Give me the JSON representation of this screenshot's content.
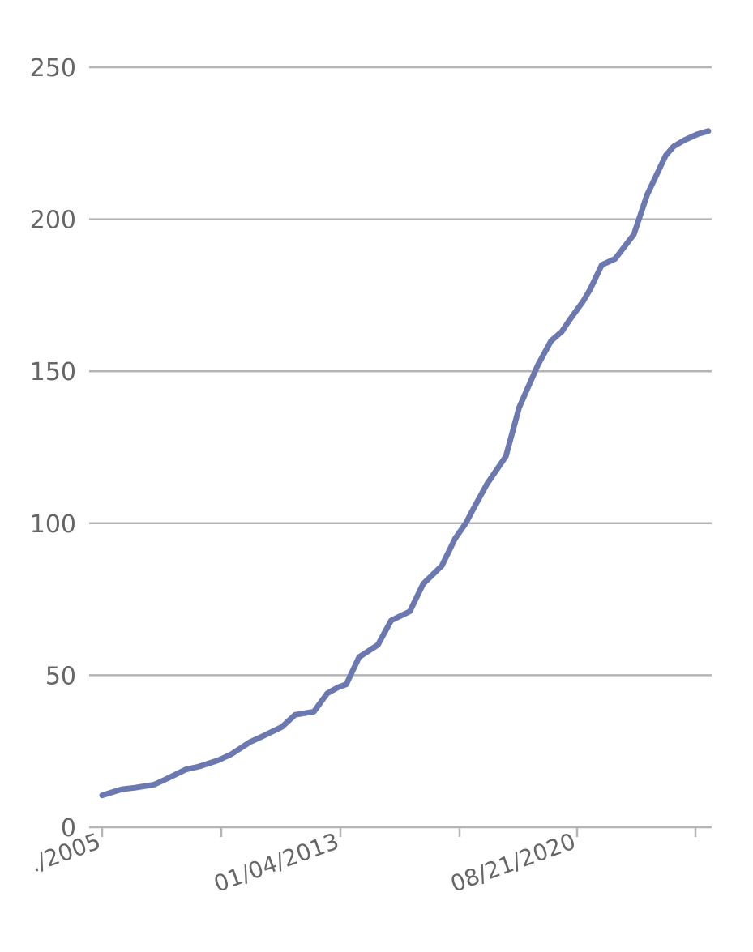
{
  "chart_data": {
    "type": "line",
    "title": "",
    "xlabel": "",
    "ylabel": "",
    "ylim": [
      0,
      250
    ],
    "y_ticks": [
      0,
      50,
      100,
      150,
      200,
      250
    ],
    "x_tick_labels": [
      "./2005",
      "01/04/2013",
      "08/21/2020"
    ],
    "grid": "horizontal",
    "legend": "none",
    "colors": {
      "series": "#6b79b0",
      "grid": "#b5b5b5",
      "axis": "#b5b5b5",
      "label": "#666666"
    },
    "series": [
      {
        "x": [
          "2005-05-20",
          "2006-01-01",
          "2006-06-01",
          "2007-01-01",
          "2007-06-01",
          "2008-01-01",
          "2008-06-01",
          "2009-01-01",
          "2009-06-01",
          "2010-01-01",
          "2010-06-01",
          "2011-01-01",
          "2011-06-01",
          "2012-01-01",
          "2012-06-01",
          "2012-10-01",
          "2013-01-04",
          "2013-06-01",
          "2014-01-01",
          "2014-06-01",
          "2015-01-01",
          "2015-06-01",
          "2016-01-01",
          "2016-06-01",
          "2016-10-01",
          "2017-01-01",
          "2017-06-01",
          "2018-01-01",
          "2018-06-01",
          "2019-01-01",
          "2019-06-01",
          "2019-10-01",
          "2020-01-01",
          "2020-06-01",
          "2020-08-21",
          "2021-01-01",
          "2021-06-01",
          "2022-01-01",
          "2022-06-01",
          "2023-01-01",
          "2023-04-01",
          "2023-08-01",
          "2024-01-01",
          "2024-05-01"
        ],
        "values": [
          10.5,
          12.5,
          13,
          14,
          16,
          19,
          20,
          22,
          24,
          28,
          30,
          33,
          37,
          38,
          44,
          46,
          47,
          56,
          60,
          68,
          71,
          80,
          86,
          95,
          100,
          105,
          113,
          122,
          138,
          152,
          160,
          163,
          167,
          173,
          177,
          185,
          187,
          195,
          208,
          221,
          224,
          226,
          228,
          229
        ]
      }
    ],
    "x_range": [
      "2005-05-20",
      "2024-05-20"
    ]
  }
}
